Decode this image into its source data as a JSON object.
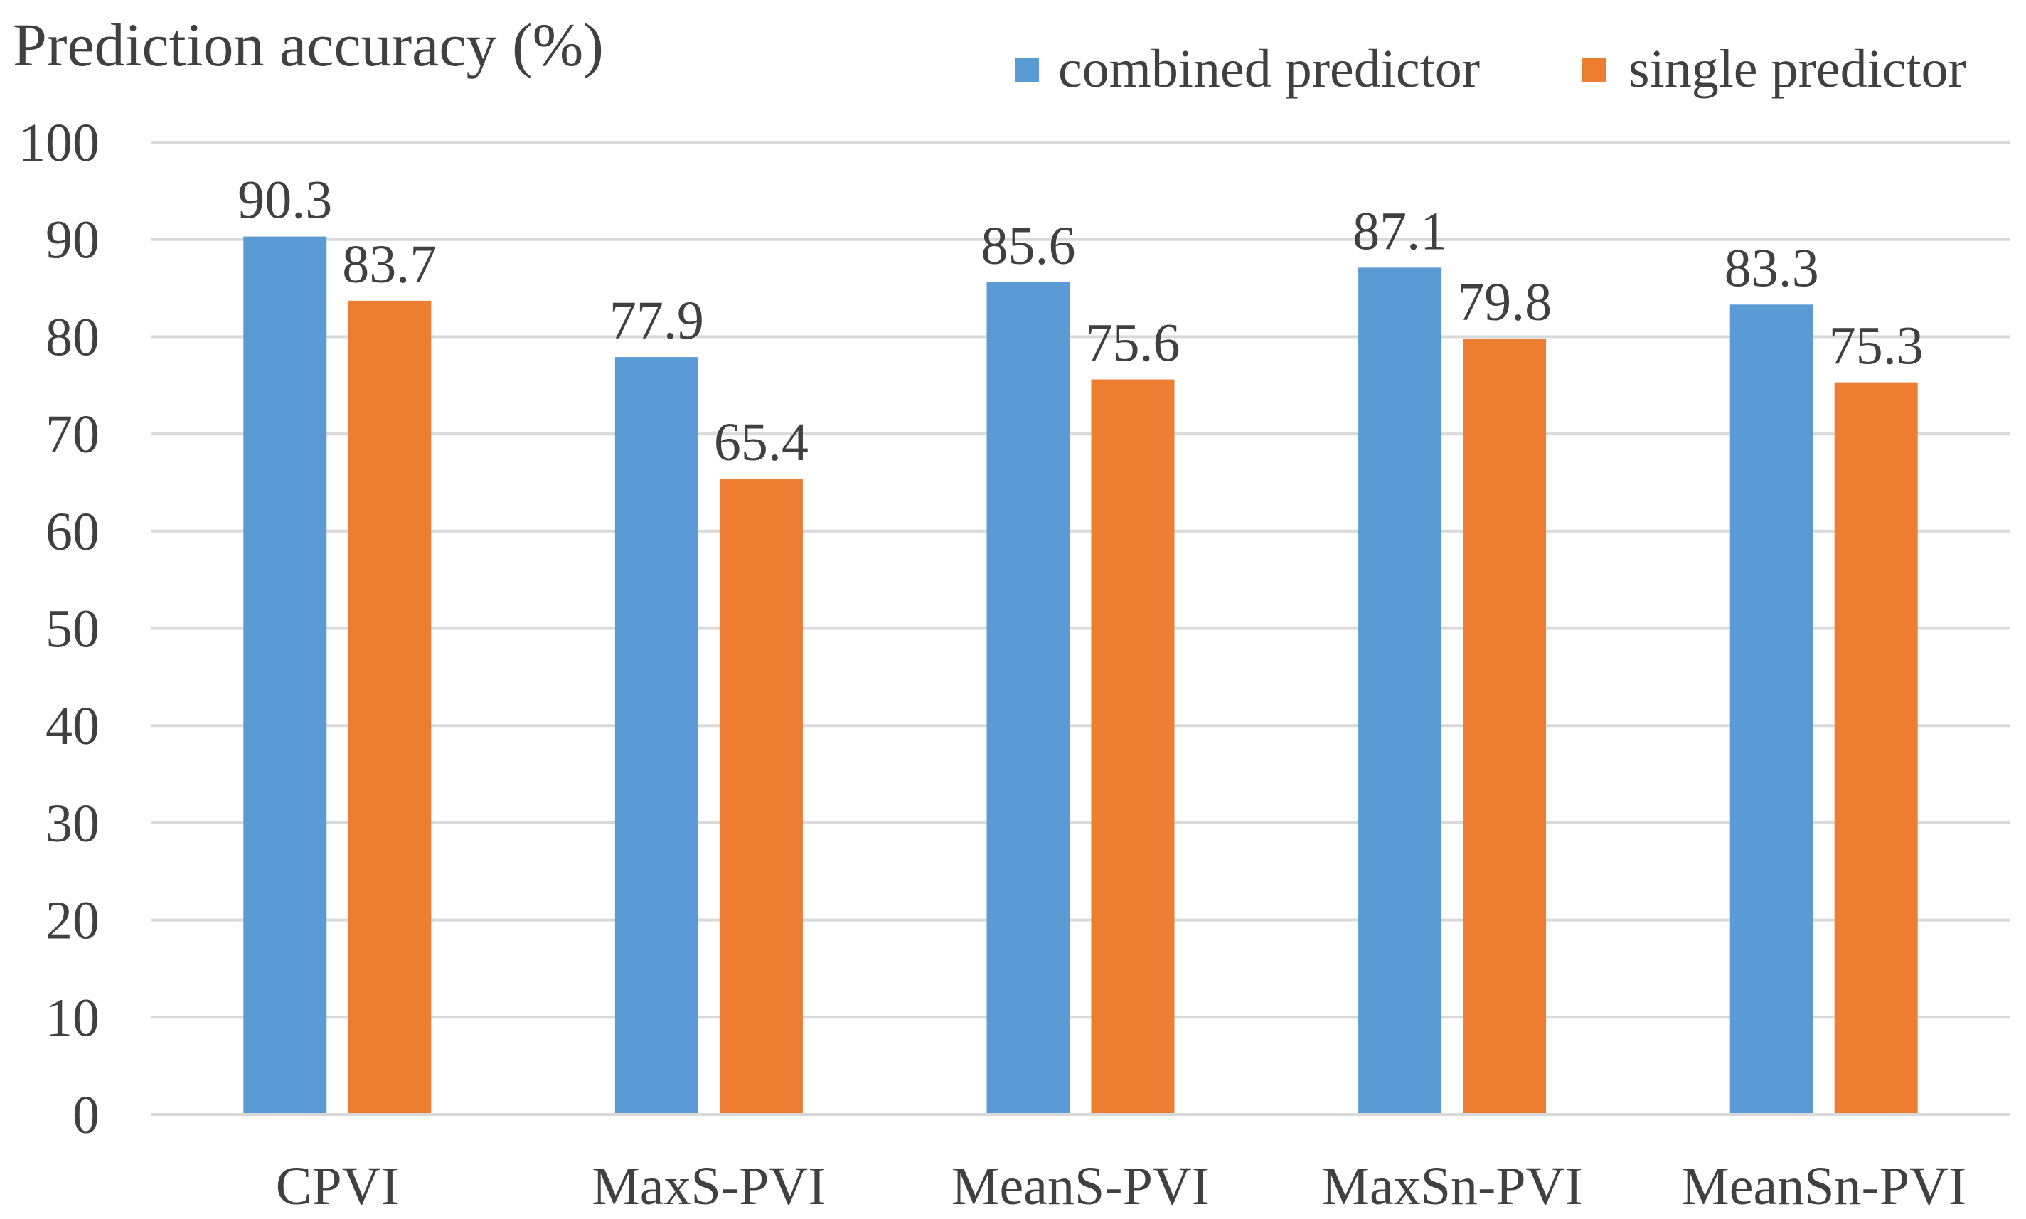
{
  "chart_data": {
    "type": "bar",
    "title": "Prediction accuracy (%)",
    "xlabel": "",
    "ylabel": "Prediction accuracy (%)",
    "categories": [
      "CPVI",
      "MaxS-PVI",
      "MeanS-PVI",
      "MaxSn-PVI",
      "MeanSn-PVI"
    ],
    "series": [
      {
        "name": "combined predictor",
        "color": "#5b9bd5",
        "values": [
          90.3,
          77.9,
          85.6,
          87.1,
          83.3
        ],
        "labels": [
          "90.3",
          "77.9",
          "85.6",
          "87.1",
          "83.3"
        ]
      },
      {
        "name": "single predictor",
        "color": "#ed7d31",
        "values": [
          83.7,
          65.4,
          75.6,
          79.8,
          75.3
        ],
        "labels": [
          "83.7",
          "65.4",
          "75.6",
          "79.8",
          "75.3"
        ]
      }
    ],
    "ylim": [
      0,
      100
    ],
    "yticks": [
      0,
      10,
      20,
      30,
      40,
      50,
      60,
      70,
      80,
      90,
      100
    ],
    "ytick_labels": [
      "0",
      "10",
      "20",
      "30",
      "40",
      "50",
      "60",
      "70",
      "80",
      "90",
      "100"
    ],
    "grid": true,
    "legend_position": "top-right"
  }
}
